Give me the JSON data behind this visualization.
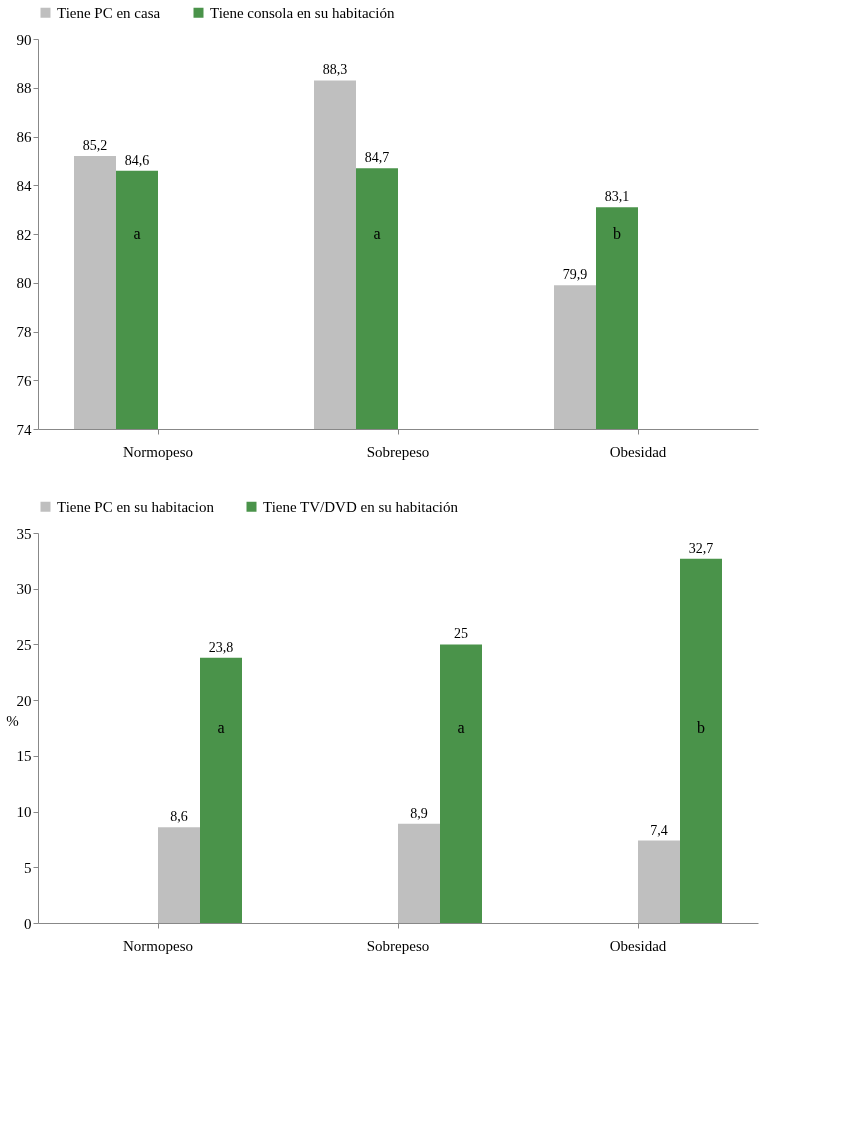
{
  "chart_data": [
    {
      "type": "bar",
      "categories": [
        "Normopeso",
        "Sobrepeso",
        "Obesidad"
      ],
      "series": [
        {
          "name": "Tiene PC en casa",
          "color": "#bfbfbf",
          "values": [
            85.2,
            88.3,
            79.9
          ],
          "value_labels": [
            "85,2",
            "88,3",
            "79,9"
          ]
        },
        {
          "name": "Tiene consola en su habitación",
          "color": "#4a934a",
          "values": [
            84.6,
            84.7,
            83.1
          ],
          "value_labels": [
            "84,6",
            "84,7",
            "83,1"
          ]
        }
      ],
      "ylim": [
        74,
        90
      ],
      "yticks": [
        74,
        76,
        78,
        80,
        82,
        84,
        86,
        88,
        90
      ],
      "grid": false,
      "legend": "top",
      "annotations": [
        "a",
        "a",
        "b"
      ]
    },
    {
      "type": "bar",
      "categories": [
        "Normopeso",
        "Sobrepeso",
        "Obesidad"
      ],
      "ylabel": "%",
      "series": [
        {
          "name": "Tiene PC en su habitacion",
          "color": "#bfbfbf",
          "values": [
            8.6,
            8.9,
            7.4
          ],
          "value_labels": [
            "8,6",
            "8,9",
            "7,4"
          ]
        },
        {
          "name": "Tiene TV/DVD en su habitación",
          "color": "#4a934a",
          "values": [
            23.8,
            25,
            32.7
          ],
          "value_labels": [
            "23,8",
            "25",
            "32,7"
          ]
        }
      ],
      "ylim": [
        0,
        35
      ],
      "yticks": [
        0,
        5,
        10,
        15,
        20,
        25,
        30,
        35
      ],
      "grid": false,
      "legend": "top",
      "annotations": [
        "a",
        "a",
        "b"
      ]
    }
  ]
}
